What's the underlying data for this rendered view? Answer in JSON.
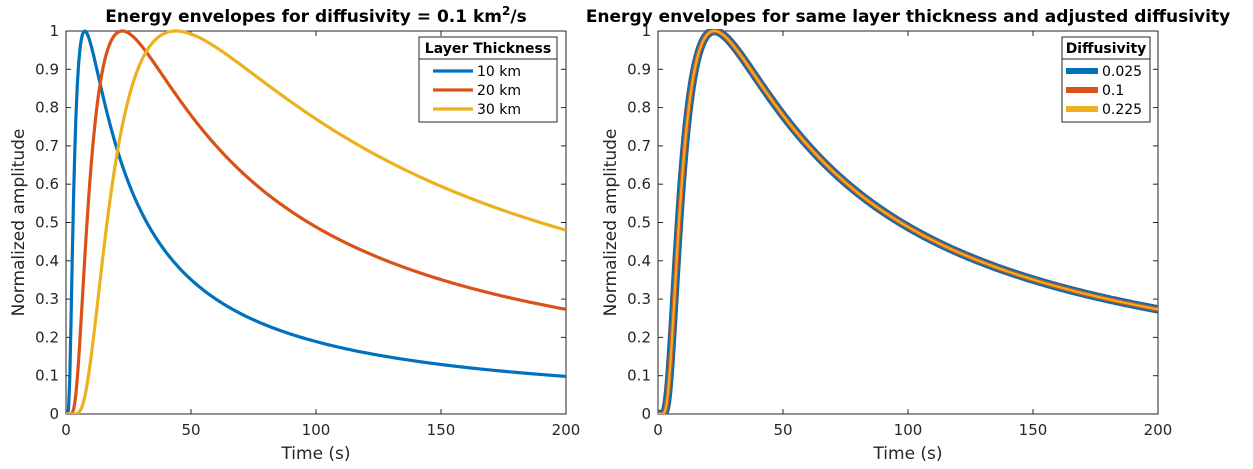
{
  "chart_data": [
    {
      "type": "line",
      "title": "Energy envelopes for diffusivity = 0.1 km",
      "title_sup": "2",
      "title_tail": "/s",
      "xlabel": "Time (s)",
      "ylabel": "Normalized amplitude",
      "xlim": [
        0,
        200
      ],
      "ylim": [
        0,
        1
      ],
      "xticks": [
        "0",
        "50",
        "100",
        "150",
        "200"
      ],
      "yticks": [
        "0",
        "0.1",
        "0.2",
        "0.3",
        "0.4",
        "0.5",
        "0.6",
        "0.7",
        "0.8",
        "0.9",
        "1"
      ],
      "grid": false,
      "legend": {
        "title": "Layer Thickness",
        "placement": "top-right"
      },
      "series": [
        {
          "name": "10 km",
          "color": "#0072BD",
          "peak_time": 7.5
        },
        {
          "name": "20 km",
          "color": "#D95319",
          "peak_time": 22.5
        },
        {
          "name": "30 km",
          "color": "#EDB120",
          "peak_time": 44
        }
      ]
    },
    {
      "type": "line",
      "title": "Energy envelopes for same layer thickness and adjusted diffusivity",
      "xlabel": "Time (s)",
      "ylabel": "Normalized amplitude",
      "xlim": [
        0,
        200
      ],
      "ylim": [
        0,
        1
      ],
      "xticks": [
        "0",
        "50",
        "100",
        "150",
        "200"
      ],
      "yticks": [
        "0",
        "0.1",
        "0.2",
        "0.3",
        "0.4",
        "0.5",
        "0.6",
        "0.7",
        "0.8",
        "0.9",
        "1"
      ],
      "grid": false,
      "legend": {
        "title": "Diffusivity",
        "placement": "top-right"
      },
      "series": [
        {
          "name": "0.025",
          "color": "#0072BD",
          "peak_time": 22.5
        },
        {
          "name": "0.1",
          "color": "#D95319",
          "peak_time": 22.5
        },
        {
          "name": "0.225",
          "color": "#EDB120",
          "peak_time": 22.5
        }
      ]
    }
  ]
}
